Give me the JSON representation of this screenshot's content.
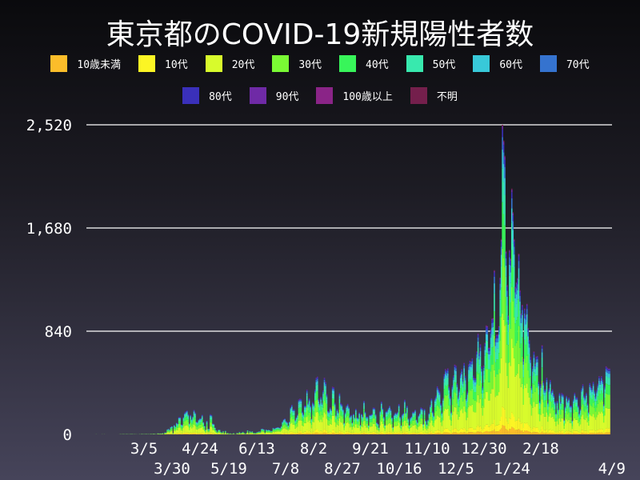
{
  "chart_data": {
    "type": "bar",
    "stacked": true,
    "title": "東京都のCOVID-19新規陽性者数",
    "xlabel": "",
    "ylabel": "",
    "ylim": [
      0,
      2520
    ],
    "yticks": [
      "0",
      "840",
      "1,680",
      "2,520"
    ],
    "ytick_values": [
      0,
      840,
      1680,
      2520
    ],
    "xticks": [
      "3/5",
      "3/30",
      "4/24",
      "5/19",
      "6/13",
      "7/8",
      "8/2",
      "8/27",
      "9/21",
      "10/16",
      "11/10",
      "12/5",
      "12/30",
      "1/24",
      "2/18",
      "4/9"
    ],
    "grid": "horizontal",
    "legend_placement": "top",
    "x_start": "2020-01-24",
    "series": [
      {
        "name": "10歳未満",
        "color": "#fbbd2a",
        "share": 0.03
      },
      {
        "name": "10代",
        "color": "#fcf524",
        "share": 0.06
      },
      {
        "name": "20代",
        "color": "#d8fb2c",
        "share": 0.3
      },
      {
        "name": "30代",
        "color": "#7afa34",
        "share": 0.21
      },
      {
        "name": "40代",
        "color": "#38f55a",
        "share": 0.15
      },
      {
        "name": "50代",
        "color": "#38e9ae",
        "share": 0.11
      },
      {
        "name": "60代",
        "color": "#38c9d9",
        "share": 0.06
      },
      {
        "name": "70代",
        "color": "#3573cf",
        "share": 0.04
      },
      {
        "name": "80代",
        "color": "#3a30ba",
        "share": 0.025
      },
      {
        "name": "90代",
        "color": "#6f2aa6",
        "share": 0.01
      },
      {
        "name": "100歳以上",
        "color": "#8a2487",
        "share": 0.001
      },
      {
        "name": "不明",
        "color": "#741f4c",
        "share": 0.004
      }
    ],
    "daily_totals": [
      1,
      0,
      0,
      0,
      0,
      1,
      0,
      1,
      0,
      0,
      0,
      0,
      0,
      0,
      0,
      0,
      0,
      0,
      0,
      0,
      1,
      2,
      1,
      3,
      2,
      1,
      3,
      2,
      1,
      2,
      3,
      3,
      1,
      2,
      1,
      1,
      0,
      2,
      1,
      4,
      3,
      2,
      3,
      4,
      2,
      3,
      2,
      5,
      2,
      6,
      5,
      3,
      2,
      10,
      6,
      8,
      7,
      11,
      3,
      17,
      16,
      41,
      47,
      40,
      63,
      68,
      13,
      78,
      66,
      97,
      89,
      143,
      143,
      83,
      80,
      144,
      178,
      189,
      197,
      166,
      91,
      161,
      127,
      149,
      201,
      181,
      107,
      102,
      123,
      132,
      134,
      161,
      103,
      72,
      39,
      112,
      47,
      46,
      165,
      160,
      91,
      87,
      57,
      36,
      23,
      39,
      39,
      22,
      15,
      28,
      10,
      30,
      9,
      14,
      5,
      10,
      5,
      5,
      11,
      3,
      2,
      14,
      8,
      21,
      11,
      15,
      22,
      14,
      5,
      13,
      34,
      12,
      28,
      20,
      26,
      14,
      13,
      12,
      18,
      22,
      25,
      24,
      47,
      48,
      42,
      16,
      41,
      35,
      39,
      35,
      29,
      31,
      55,
      48,
      54,
      57,
      60,
      58,
      54,
      67,
      107,
      124,
      131,
      111,
      102,
      75,
      106,
      224,
      243,
      206,
      206,
      119,
      143,
      165,
      286,
      293,
      290,
      188,
      168,
      237,
      238,
      366,
      260,
      295,
      239,
      131,
      266,
      250,
      367,
      463,
      472,
      292,
      258,
      309,
      263,
      360,
      462,
      429,
      331,
      197,
      188,
      222,
      206,
      389,
      385,
      260,
      161,
      207,
      186,
      339,
      258,
      247,
      212,
      95,
      182,
      236,
      250,
      226,
      148,
      160,
      100,
      170,
      141,
      211,
      141,
      136,
      181,
      80,
      170,
      149,
      276,
      187,
      146,
      146,
      77,
      163,
      163,
      171,
      220,
      218,
      168,
      99,
      88,
      59,
      195,
      270,
      218,
      146,
      78,
      191,
      194,
      216,
      235,
      207,
      143,
      60,
      164,
      180,
      173,
      187,
      249,
      146,
      77,
      166,
      177,
      284,
      185,
      235,
      132,
      78,
      139,
      150,
      186,
      186,
      203,
      124,
      102,
      158,
      177,
      221,
      215,
      87,
      209,
      116,
      86,
      122,
      178,
      242,
      294,
      189,
      157,
      293,
      317,
      393,
      374,
      352,
      255,
      180,
      298,
      493,
      534,
      522,
      539,
      391,
      314,
      186,
      401,
      481,
      570,
      561,
      418,
      311,
      372,
      500,
      533,
      449,
      584,
      480,
      299,
      352,
      572,
      602,
      595,
      621,
      480,
      460,
      460,
      678,
      822,
      664,
      736,
      556,
      392,
      563,
      748,
      888,
      884,
      708,
      708,
      856,
      944,
      949,
      1337,
      783,
      814,
      816,
      884,
      1278,
      1591,
      2520,
      2392,
      2268,
      1494,
      1219,
      970,
      1502,
      1433,
      2001,
      1809,
      1592,
      1204,
      1240,
      1274,
      1471,
      1175,
      986,
      1056,
      618,
      1026,
      973,
      1064,
      868,
      769,
      633,
      393,
      556,
      676,
      577,
      636,
      639,
      429,
      276,
      412,
      727,
      434,
      369,
      371,
      463,
      266,
      378,
      445,
      353,
      369,
      327,
      272,
      178,
      275,
      213,
      340,
      270,
      337,
      329,
      121,
      232,
      316,
      279,
      301,
      237,
      237,
      116,
      290,
      340,
      304,
      304,
      239,
      175,
      209,
      378,
      409,
      323,
      303,
      342,
      256,
      187,
      420,
      394,
      376,
      430,
      362,
      313,
      364,
      414,
      475,
      440,
      475,
      446,
      249,
      399,
      555,
      545,
      537,
      537
    ]
  }
}
